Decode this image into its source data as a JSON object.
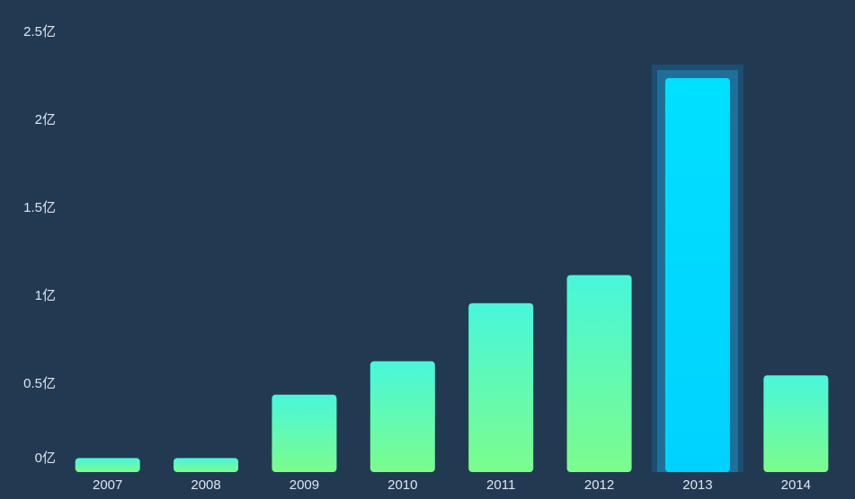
{
  "chart_data": {
    "type": "bar",
    "categories": [
      "2007",
      "2008",
      "2009",
      "2010",
      "2011",
      "2012",
      "2013",
      "2014"
    ],
    "values": [
      0.08,
      0.08,
      0.44,
      0.63,
      0.96,
      1.12,
      2.24,
      0.55
    ],
    "gradient": [
      "#48f7da",
      "#7cfc8c"
    ],
    "highlighted": "2013",
    "highlight_color": "#00d2ff",
    "ylim": [
      0,
      2.5
    ],
    "yticks": [
      {
        "value": 0,
        "label": "0亿"
      },
      {
        "value": 0.5,
        "label": "0.5亿"
      },
      {
        "value": 1,
        "label": "1亿"
      },
      {
        "value": 1.5,
        "label": "1.5亿"
      },
      {
        "value": 2,
        "label": "2亿"
      },
      {
        "value": 2.5,
        "label": "2.5亿"
      }
    ],
    "grid": false
  }
}
